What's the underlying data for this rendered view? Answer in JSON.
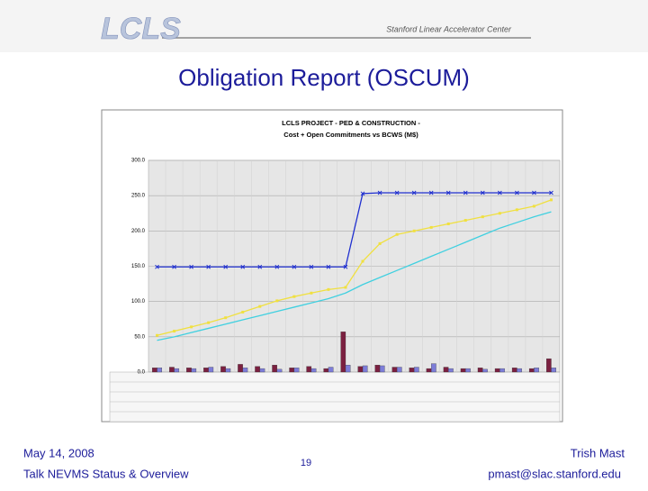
{
  "header": {
    "logo": "LCLS",
    "organization": "Stanford Linear Accelerator Center"
  },
  "title": "Obligation Report (OSCUM)",
  "chart_data": {
    "type": "bar_line",
    "title": "LCLS PROJECT - PED & CONSTRUCTION -",
    "subtitle": "Cost + Open Commitments vs BCWS (M$)",
    "categories": [
      null,
      null,
      null,
      null,
      null,
      null,
      null,
      null,
      null,
      null,
      null,
      null,
      null,
      null,
      null,
      null,
      null,
      null,
      null,
      null,
      null,
      null,
      null,
      null
    ],
    "ylim": [
      0,
      300
    ],
    "yticks": [
      {
        "value": 0,
        "label": "0.0"
      },
      {
        "value": 50,
        "label": "50.0"
      },
      {
        "value": 100,
        "label": "100.0"
      },
      {
        "value": 150,
        "label": "150.0"
      },
      {
        "value": 200,
        "label": "200.0"
      },
      {
        "value": 250,
        "label": "250.0"
      },
      {
        "value": 300,
        "label": "300.0"
      }
    ],
    "grid": true,
    "series": [
      {
        "kind": "bar",
        "color": "#7b2040",
        "values": [
          6,
          7,
          6,
          6,
          8,
          11,
          8,
          10,
          6,
          8,
          5,
          57,
          8,
          10,
          7,
          6,
          5,
          7,
          5,
          6,
          5,
          6,
          5,
          19
        ]
      },
      {
        "kind": "bar",
        "color": "#7d7dd8",
        "values": [
          6,
          5,
          5,
          7,
          5,
          6,
          5,
          4,
          6,
          5,
          7,
          10,
          9,
          9,
          7,
          7,
          12,
          5,
          5,
          4,
          5,
          5,
          6,
          6
        ]
      },
      {
        "kind": "line",
        "color": "#2030d0",
        "marker": "x",
        "values": [
          149,
          149,
          149,
          149,
          149,
          149,
          149,
          149,
          149,
          149,
          149,
          149,
          253,
          254,
          254,
          254,
          254,
          254,
          254,
          254,
          254,
          254,
          254,
          254
        ]
      },
      {
        "kind": "line",
        "color": "#40d0e0",
        "marker": "none",
        "values": [
          45,
          50,
          56,
          62,
          68,
          74,
          80,
          86,
          92,
          98,
          104,
          112,
          124,
          134,
          144,
          154,
          164,
          174,
          184,
          194,
          204,
          212,
          220,
          227
        ]
      },
      {
        "kind": "line",
        "color": "#f0e040",
        "marker": "square",
        "values": [
          52,
          58,
          64,
          70,
          77,
          85,
          93,
          101,
          107,
          112,
          117,
          120,
          157,
          182,
          195,
          200,
          205,
          210,
          215,
          220,
          225,
          230,
          235,
          244
        ]
      }
    ]
  },
  "footer": {
    "date": "May 14, 2008",
    "talk": "Talk NEVMS Status & Overview",
    "page": "19",
    "author": "Trish Mast",
    "email": "pmast@slac.stanford.edu"
  }
}
